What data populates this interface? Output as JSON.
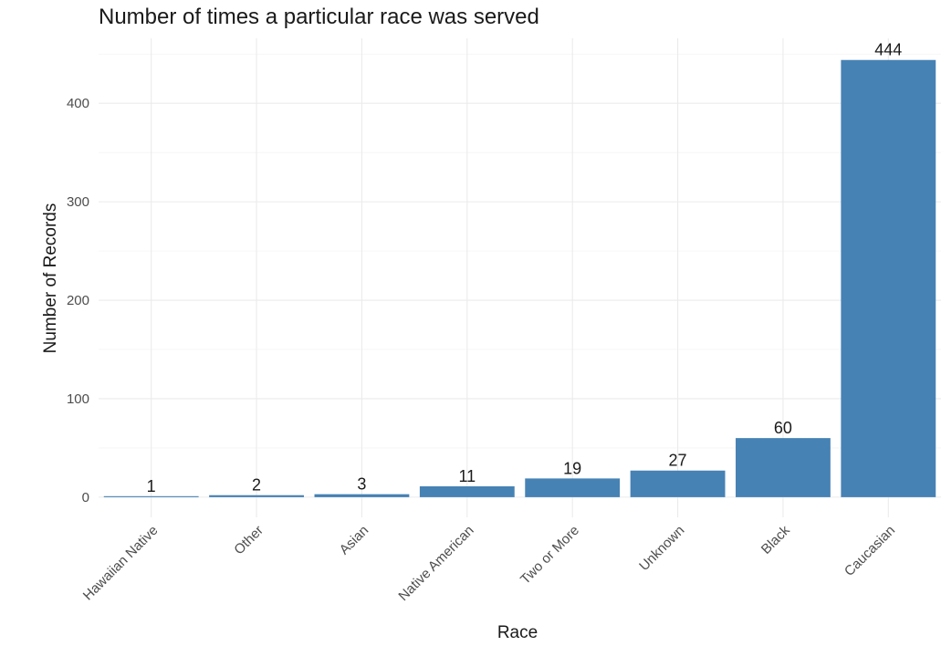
{
  "chart_data": {
    "type": "bar",
    "title": "Number of times a particular race was served",
    "xlabel": "Race",
    "ylabel": "Number of Records",
    "categories": [
      "Hawaiian Native",
      "Other",
      "Asian",
      "Native American",
      "Two or More",
      "Unknown",
      "Black",
      "Caucasian"
    ],
    "values": [
      1,
      2,
      3,
      11,
      19,
      27,
      60,
      444
    ],
    "value_labels": [
      "1",
      "2",
      "3",
      "11",
      "19",
      "27",
      "60",
      "444"
    ],
    "yticks": [
      0,
      100,
      200,
      300,
      400
    ],
    "ytick_labels": [
      "0",
      "100",
      "200",
      "300",
      "400"
    ],
    "ylim": [
      -20.5,
      466
    ],
    "grid": true,
    "bar_color": "#4682B4",
    "x_tick_rotation": "45 degrees"
  }
}
